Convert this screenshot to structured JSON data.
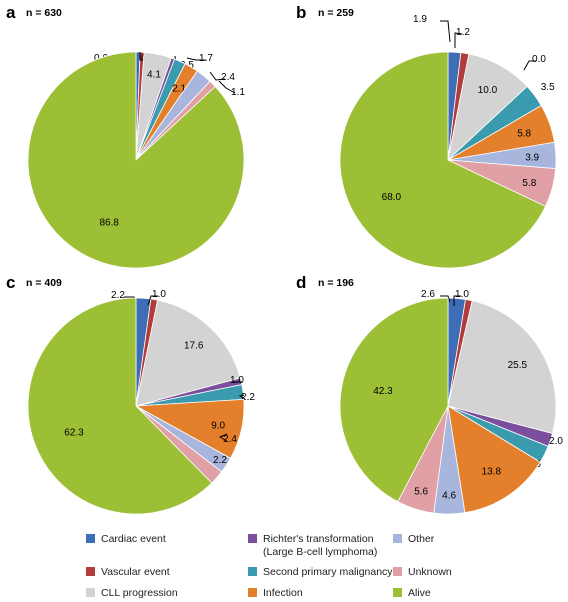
{
  "legend": {
    "order": [
      "cardiac",
      "richter",
      "other",
      "vascular",
      "second",
      "unknown",
      "cll",
      "infection",
      "alive"
    ],
    "items": [
      {
        "key": "cardiac",
        "lines": [
          "Cardiac event"
        ],
        "color": "#3d6db5"
      },
      {
        "key": "richter",
        "lines": [
          "Richter's transformation",
          "(Large B-cell lymphoma)"
        ],
        "color": "#7b4f9d"
      },
      {
        "key": "other",
        "lines": [
          "Other"
        ],
        "color": "#a8b6de"
      },
      {
        "key": "vascular",
        "lines": [
          "Vascular event"
        ],
        "color": "#b23b3b"
      },
      {
        "key": "second",
        "lines": [
          "Second primary malignancy"
        ],
        "color": "#3a9aae"
      },
      {
        "key": "unknown",
        "lines": [
          "Unknown"
        ],
        "color": "#e0a0a6"
      },
      {
        "key": "cll",
        "lines": [
          "CLL progression"
        ],
        "color": "#d3d3d3"
      },
      {
        "key": "infection",
        "lines": [
          "Infection"
        ],
        "color": "#e4802c"
      },
      {
        "key": "alive",
        "lines": [
          "Alive"
        ],
        "color": "#9cbf35"
      }
    ]
  },
  "chart_data": [
    {
      "type": "pie",
      "panel": "a",
      "n_label": "n = 630",
      "slice_order": [
        "cardiac",
        "vascular",
        "cll",
        "richter",
        "second",
        "infection",
        "other",
        "unknown",
        "alive"
      ],
      "values": [
        0.6,
        0.6,
        4.1,
        0.5,
        1.7,
        2.1,
        2.4,
        1.1,
        86.8
      ],
      "labels": [
        "0.6",
        "0.6",
        "4.1",
        "0.5",
        "1.7",
        "2.1",
        "2.4",
        "1.1",
        "86.8"
      ]
    },
    {
      "type": "pie",
      "panel": "b",
      "n_label": "n = 259",
      "slice_order": [
        "cardiac",
        "vascular",
        "cll",
        "richter",
        "second",
        "infection",
        "other",
        "unknown",
        "alive"
      ],
      "values": [
        1.9,
        1.2,
        10.0,
        0.0,
        3.5,
        5.8,
        3.9,
        5.8,
        68.0
      ],
      "labels": [
        "1.9",
        "1.2",
        "10.0",
        "0.0",
        "3.5",
        "5.8",
        "3.9",
        "5.8",
        "68.0"
      ]
    },
    {
      "type": "pie",
      "panel": "c",
      "n_label": "n = 409",
      "slice_order": [
        "cardiac",
        "vascular",
        "cll",
        "richter",
        "second",
        "infection",
        "other",
        "unknown",
        "alive"
      ],
      "values": [
        2.2,
        1.0,
        17.6,
        1.0,
        2.2,
        9.0,
        2.4,
        2.2,
        62.3
      ],
      "labels": [
        "2.2",
        "1.0",
        "17.6",
        "1.0",
        "2.2",
        "9.0",
        "2.4",
        "2.2",
        "62.3"
      ]
    },
    {
      "type": "pie",
      "panel": "d",
      "n_label": "n = 196",
      "slice_order": [
        "cardiac",
        "vascular",
        "cll",
        "richter",
        "second",
        "infection",
        "other",
        "unknown",
        "alive"
      ],
      "values": [
        2.6,
        1.0,
        25.5,
        2.0,
        2.6,
        13.8,
        4.6,
        5.6,
        42.3
      ],
      "labels": [
        "2.6",
        "1.0",
        "25.5",
        "2.0",
        "2.6",
        "13.8",
        "4.6",
        "5.6",
        "42.3"
      ]
    }
  ]
}
